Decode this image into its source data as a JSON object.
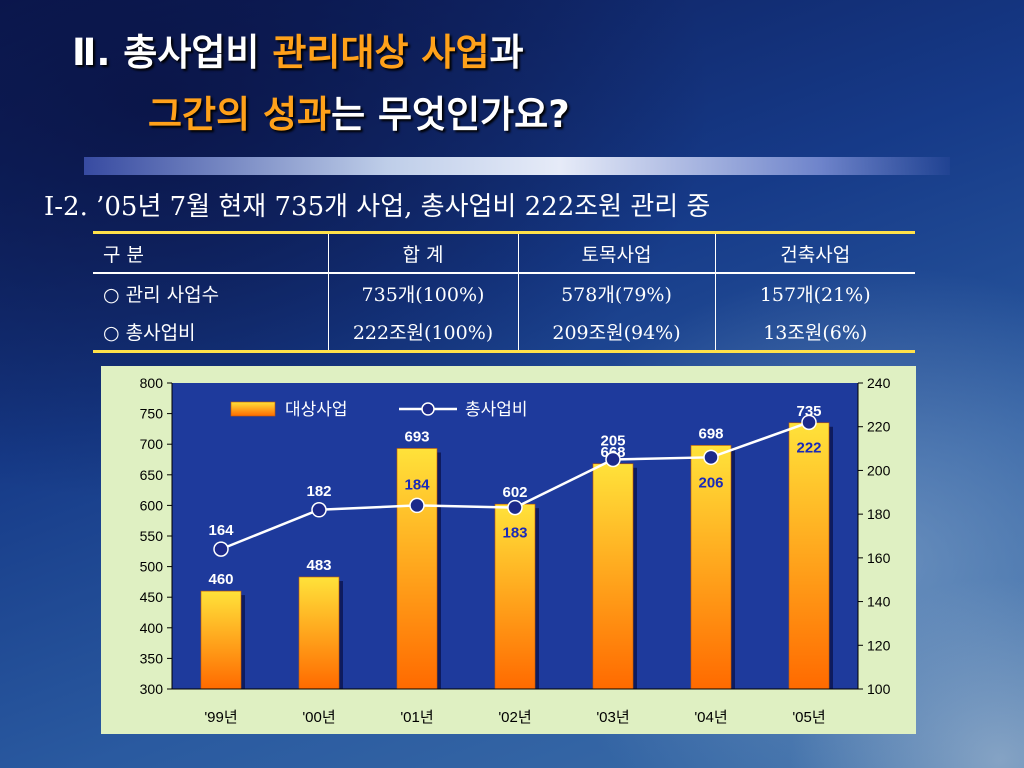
{
  "title": {
    "line1_part1": "Ⅱ. 총사업비 ",
    "line1_part2": "관리대상 사업",
    "line1_part3": "과",
    "line2_part1": "그간의 성과",
    "line2_part2": "는 무엇인가요?"
  },
  "subtitle": "Ⅰ-2. ’05년 7월 현재 735개 사업, 총사업비 222조원 관리 중",
  "table": {
    "headers": [
      "구  분",
      "합  계",
      "토목사업",
      "건축사업"
    ],
    "rows": [
      [
        "○ 관리 사업수",
        "735개(100%)",
        "578개(79%)",
        "157개(21%)"
      ],
      [
        "○ 총사업비",
        "222조원(100%)",
        "209조원(94%)",
        "13조원(6%)"
      ]
    ]
  },
  "chart_data": {
    "type": "bar",
    "categories": [
      "'99년",
      "'00년",
      "'01년",
      "'02년",
      "'03년",
      "'04년",
      "'05년"
    ],
    "series": [
      {
        "name": "대상사업",
        "type": "bar",
        "axis": "left",
        "values": [
          460,
          483,
          693,
          602,
          668,
          698,
          735
        ]
      },
      {
        "name": "총사업비",
        "type": "line",
        "axis": "right",
        "values": [
          164,
          182,
          184,
          183,
          205,
          206,
          222
        ]
      }
    ],
    "ylim": [
      300,
      800
    ],
    "yticks": [
      300,
      350,
      400,
      450,
      500,
      550,
      600,
      650,
      700,
      750,
      800
    ],
    "y2lim": [
      100,
      240
    ],
    "y2ticks": [
      100,
      120,
      140,
      160,
      180,
      200,
      220,
      240
    ],
    "legend": "top-left",
    "grid": false,
    "colors": {
      "plot_bg": "#1e3a9c",
      "bar_top": "#ffe23a",
      "bar_bottom": "#ff6a00",
      "line": "#ffffff",
      "marker": "#1c2a8a",
      "line_label_inside": "#1a2ab8"
    }
  }
}
